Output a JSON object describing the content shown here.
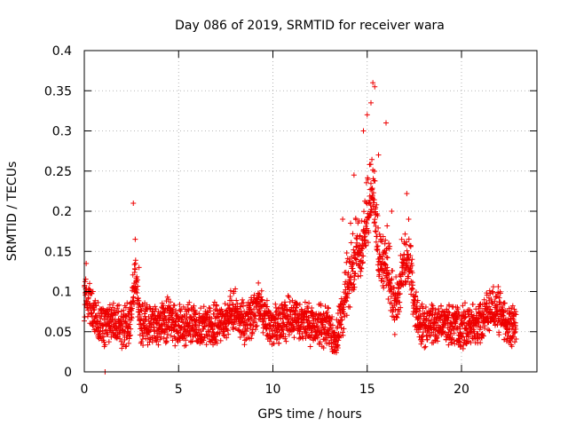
{
  "chart_data": {
    "type": "scatter",
    "title": "Day 086 of 2019, SRMTID for receiver wara",
    "xlabel": "GPS time / hours",
    "ylabel": "SRMTID / TECUs",
    "xlim": [
      0,
      24
    ],
    "ylim": [
      0,
      0.4
    ],
    "xticks": [
      0,
      5,
      10,
      15,
      20
    ],
    "xtick_labels": [
      "0",
      "5",
      "10",
      "15",
      "20"
    ],
    "yticks": [
      0,
      0.05,
      0.1,
      0.15,
      0.2,
      0.25,
      0.3,
      0.35,
      0.4
    ],
    "ytick_labels": [
      "0",
      "0.05",
      "0.1",
      "0.15",
      "0.2",
      "0.25",
      "0.3",
      "0.35",
      "0.4"
    ],
    "grid": true,
    "marker": "plus",
    "color": "#ee0000",
    "time_range_hours": [
      0,
      22.9
    ],
    "baseline_range": [
      0.03,
      0.09
    ],
    "notable_points": [
      {
        "x": 0.1,
        "y": 0.135
      },
      {
        "x": 2.6,
        "y": 0.21
      },
      {
        "x": 2.7,
        "y": 0.165
      },
      {
        "x": 2.9,
        "y": 0.13
      },
      {
        "x": 13.7,
        "y": 0.19
      },
      {
        "x": 14.3,
        "y": 0.245
      },
      {
        "x": 14.8,
        "y": 0.3
      },
      {
        "x": 15.0,
        "y": 0.32
      },
      {
        "x": 15.2,
        "y": 0.335
      },
      {
        "x": 15.3,
        "y": 0.36
      },
      {
        "x": 15.4,
        "y": 0.355
      },
      {
        "x": 15.6,
        "y": 0.27
      },
      {
        "x": 16.0,
        "y": 0.31
      },
      {
        "x": 16.3,
        "y": 0.2
      },
      {
        "x": 17.1,
        "y": 0.222
      },
      {
        "x": 17.2,
        "y": 0.19
      },
      {
        "x": 1.1,
        "y": 0.0
      }
    ],
    "series": [
      {
        "name": "SRMTID",
        "x_start": 0,
        "x_end": 22.9
      }
    ]
  }
}
